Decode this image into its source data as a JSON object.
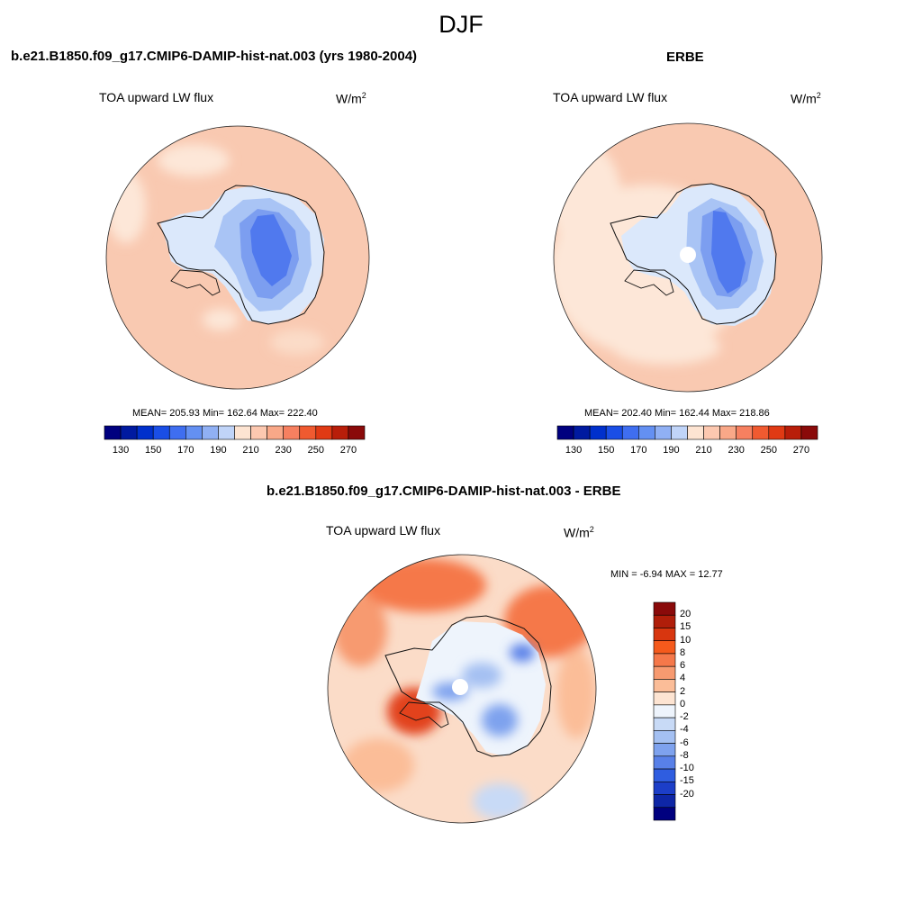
{
  "figure_title": "DJF",
  "panels": [
    {
      "id": "model",
      "case_title": "b.e21.B1850.f09_g17.CMIP6-DAMIP-hist-nat.003 (yrs 1980-2004)",
      "variable": "TOA upward LW flux",
      "units_base": "W/m",
      "units_exp": "2",
      "stats": "MEAN= 205.93  Min= 162.64  Max= 222.40"
    },
    {
      "id": "obs",
      "case_title": "ERBE",
      "variable": "TOA upward LW flux",
      "units_base": "W/m",
      "units_exp": "2",
      "stats": "MEAN= 202.40  Min= 162.44  Max= 218.86"
    },
    {
      "id": "diff",
      "case_title": "b.e21.B1850.f09_g17.CMIP6-DAMIP-hist-nat.003 - ERBE",
      "variable": "TOA upward LW flux",
      "units_base": "W/m",
      "units_exp": "2",
      "stats": "MIN =  -6.94 MAX =  12.77"
    }
  ],
  "colorbar_abs": {
    "colors": [
      "#00007f",
      "#001aa0",
      "#0030cc",
      "#1a4ee6",
      "#3f6ef0",
      "#6490f2",
      "#90b0f4",
      "#c0d4f8",
      "#fde4d2",
      "#fcc8b0",
      "#f9a888",
      "#f68060",
      "#f05a30",
      "#e03a14",
      "#b81e0a",
      "#8a0a0a"
    ],
    "labels": [
      "130",
      "150",
      "170",
      "190",
      "210",
      "230",
      "250",
      "270"
    ]
  },
  "colorbar_diff": {
    "colors": [
      "#8a0a0a",
      "#b01e0a",
      "#d8360f",
      "#f55a1c",
      "#f5784a",
      "#f79a70",
      "#fbbd98",
      "#fde4d2",
      "#eef4fc",
      "#c8daf6",
      "#a4c0f2",
      "#7ea2ee",
      "#5880e8",
      "#2f5de0",
      "#1c3ec8",
      "#0e26a6",
      "#00007f"
    ],
    "labels": [
      "20",
      "15",
      "10",
      "8",
      "6",
      "4",
      "2",
      "0",
      "-2",
      "-4",
      "-6",
      "-8",
      "-10",
      "-15",
      "-20"
    ]
  },
  "palette": {
    "ocean_warm": "#f9c9b1",
    "ocean_mid": "#fbdcc8",
    "ocean_light": "#fde7d8",
    "ice_light": "#dbe8fb",
    "ice_mid": "#a9c4f5",
    "ice_blue": "#7c9ef0",
    "ice_deep": "#5079ee",
    "coast": "#111111"
  }
}
